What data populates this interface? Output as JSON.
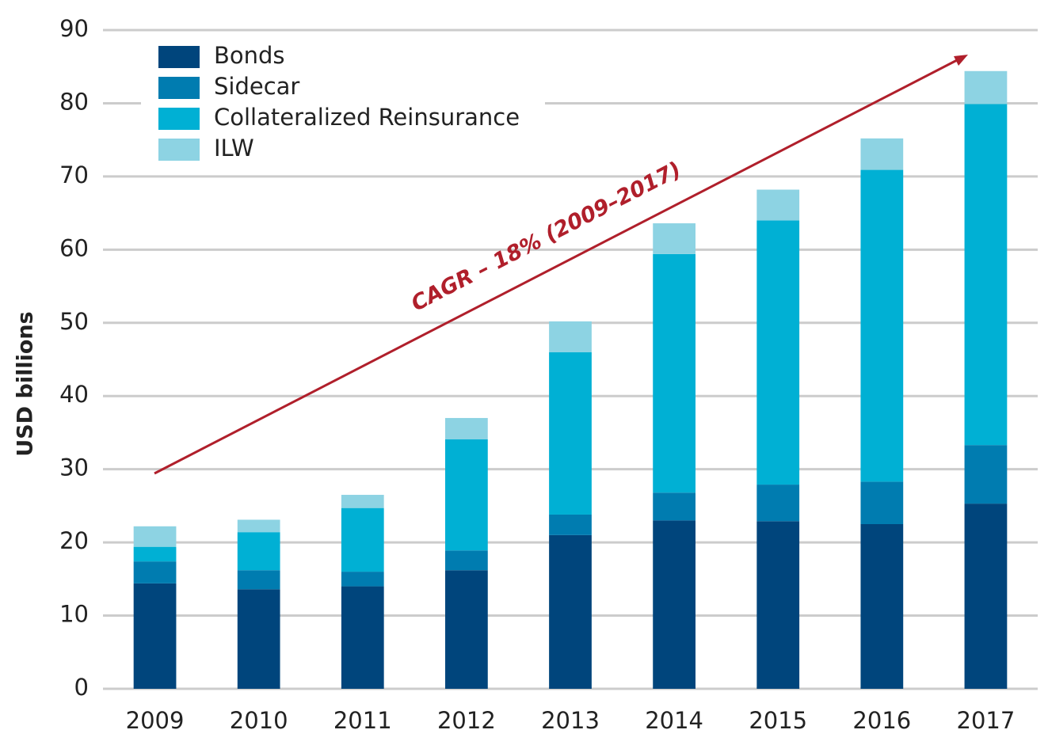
{
  "chart_data": {
    "type": "stacked_bar",
    "y_label": "USD billions",
    "annotation": "CAGR – 18% (2009–2017)",
    "categories": [
      "2009",
      "2010",
      "2011",
      "2012",
      "2013",
      "2014",
      "2015",
      "2016",
      "2017"
    ],
    "series": [
      {
        "name": "Bonds",
        "color": "#00457c",
        "values": [
          14.4,
          13.6,
          14.0,
          16.2,
          21.0,
          23.0,
          22.9,
          22.5,
          25.3
        ]
      },
      {
        "name": "Sidecar",
        "color": "#007cb0",
        "values": [
          3.0,
          2.6,
          2.0,
          2.7,
          2.8,
          3.8,
          5.0,
          5.8,
          8.0
        ]
      },
      {
        "name": "Collateralized Reinsurance",
        "color": "#00b0d4",
        "values": [
          2.0,
          5.2,
          8.7,
          15.2,
          22.2,
          32.6,
          36.1,
          42.6,
          46.6
        ]
      },
      {
        "name": "ILW",
        "color": "#8dd3e3",
        "values": [
          2.8,
          1.7,
          1.8,
          2.9,
          4.2,
          4.2,
          4.2,
          4.3,
          4.5
        ]
      }
    ],
    "ylim": [
      0,
      90
    ],
    "yticks": [
      0,
      10,
      20,
      30,
      40,
      50,
      60,
      70,
      80,
      90
    ],
    "grid": true
  }
}
